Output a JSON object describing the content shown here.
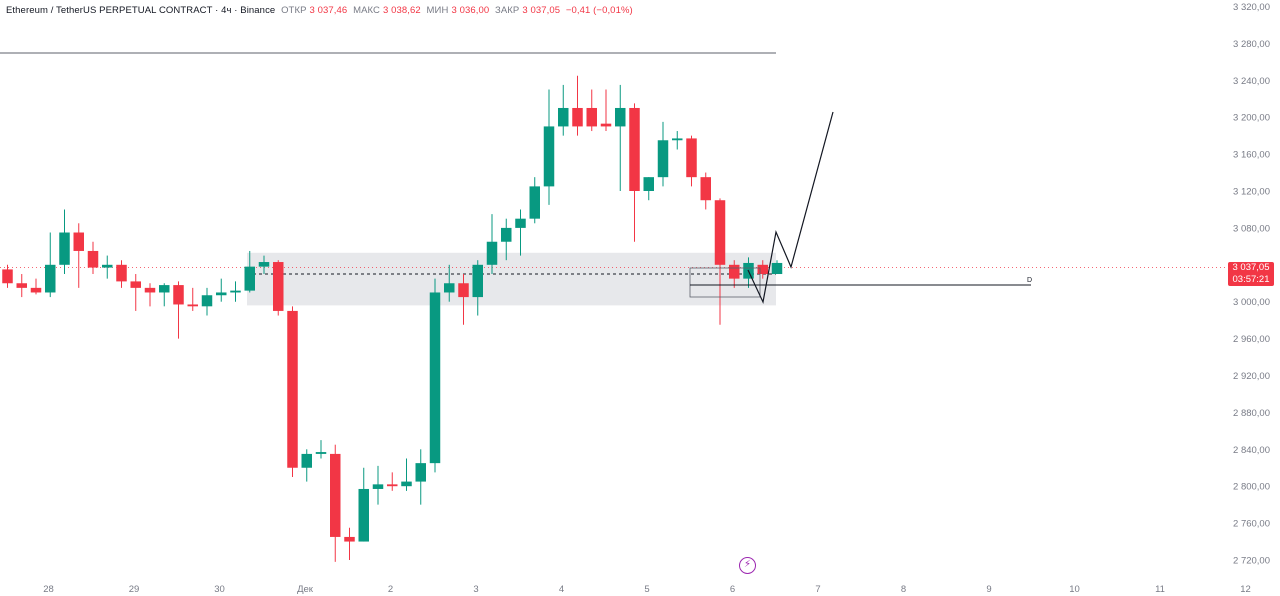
{
  "header": {
    "symbol": "Ethereum / TetherUS PERPETUAL CONTRACT · 4ч · Binance",
    "open_label": "ОТКР",
    "open_value": "3 037,46",
    "high_label": "МАКС",
    "high_value": "3 038,62",
    "low_label": "МИН",
    "low_value": "3 036,00",
    "close_label": "ЗАКР",
    "close_value": "3 037,05",
    "change": "−0,41 (−0,01%)"
  },
  "price_badge": {
    "price": "3 037,05",
    "countdown": "03:57:21"
  },
  "drawing_label": "D",
  "alert_icon": "lightning-icon",
  "colors": {
    "up": "#089981",
    "down": "#f23645",
    "zone": "#e3e4e8",
    "axis_text": "#787b86"
  },
  "chart_data": {
    "type": "candlestick",
    "y_axis": {
      "range": [
        2715,
        3325
      ],
      "ticks": [
        2720,
        2760,
        2800,
        2840,
        2880,
        2920,
        2960,
        3000,
        3040,
        3080,
        3120,
        3160,
        3200,
        3240,
        3280,
        3320
      ],
      "tick_labels": [
        "2 720,00",
        "2 760,00",
        "2 800,00",
        "2 840,00",
        "2 880,00",
        "2 920,00",
        "2 960,00",
        "3 000,00",
        "3 040,00",
        "3 080,00",
        "3 120,00",
        "3 160,00",
        "3 200,00",
        "3 240,00",
        "3 280,00",
        "3 320,00"
      ]
    },
    "x_axis": {
      "labels": [
        "28",
        "29",
        "30",
        "Дек",
        "2",
        "3",
        "4",
        "5",
        "6",
        "7",
        "8",
        "9",
        "10",
        "11",
        "12"
      ],
      "label_candle_index": [
        2,
        8,
        14,
        20,
        26,
        32,
        38,
        44,
        50,
        56,
        62,
        68,
        74,
        80,
        86
      ]
    },
    "candles": [
      {
        "o": 3035,
        "h": 3040,
        "l": 3015,
        "c": 3020
      },
      {
        "o": 3020,
        "h": 3030,
        "l": 3005,
        "c": 3015
      },
      {
        "o": 3015,
        "h": 3025,
        "l": 3008,
        "c": 3010
      },
      {
        "o": 3010,
        "h": 3075,
        "l": 3005,
        "c": 3040
      },
      {
        "o": 3040,
        "h": 3100,
        "l": 3030,
        "c": 3075
      },
      {
        "o": 3075,
        "h": 3085,
        "l": 3015,
        "c": 3055
      },
      {
        "o": 3055,
        "h": 3065,
        "l": 3030,
        "c": 3037
      },
      {
        "o": 3037,
        "h": 3050,
        "l": 3025,
        "c": 3040
      },
      {
        "o": 3040,
        "h": 3045,
        "l": 3015,
        "c": 3022
      },
      {
        "o": 3022,
        "h": 3030,
        "l": 2990,
        "c": 3015
      },
      {
        "o": 3015,
        "h": 3020,
        "l": 2995,
        "c": 3010
      },
      {
        "o": 3010,
        "h": 3020,
        "l": 2995,
        "c": 3018
      },
      {
        "o": 3018,
        "h": 3022,
        "l": 2960,
        "c": 2997
      },
      {
        "o": 2997,
        "h": 3015,
        "l": 2990,
        "c": 2995
      },
      {
        "o": 2995,
        "h": 3015,
        "l": 2985,
        "c": 3007
      },
      {
        "o": 3007,
        "h": 3025,
        "l": 3000,
        "c": 3010
      },
      {
        "o": 3010,
        "h": 3022,
        "l": 3000,
        "c": 3012
      },
      {
        "o": 3012,
        "h": 3055,
        "l": 3010,
        "c": 3038
      },
      {
        "o": 3038,
        "h": 3050,
        "l": 3030,
        "c": 3043
      },
      {
        "o": 3043,
        "h": 3045,
        "l": 2985,
        "c": 2990
      },
      {
        "o": 2990,
        "h": 2995,
        "l": 2810,
        "c": 2820
      },
      {
        "o": 2820,
        "h": 2840,
        "l": 2805,
        "c": 2835
      },
      {
        "o": 2835,
        "h": 2850,
        "l": 2830,
        "c": 2837
      },
      {
        "o": 2835,
        "h": 2845,
        "l": 2718,
        "c": 2745
      },
      {
        "o": 2745,
        "h": 2755,
        "l": 2720,
        "c": 2740
      },
      {
        "o": 2740,
        "h": 2820,
        "l": 2740,
        "c": 2797
      },
      {
        "o": 2797,
        "h": 2822,
        "l": 2780,
        "c": 2802
      },
      {
        "o": 2802,
        "h": 2815,
        "l": 2795,
        "c": 2800
      },
      {
        "o": 2800,
        "h": 2830,
        "l": 2795,
        "c": 2805
      },
      {
        "o": 2805,
        "h": 2840,
        "l": 2780,
        "c": 2825
      },
      {
        "o": 2825,
        "h": 3025,
        "l": 2815,
        "c": 3010
      },
      {
        "o": 3010,
        "h": 3040,
        "l": 3000,
        "c": 3020
      },
      {
        "o": 3020,
        "h": 3030,
        "l": 2975,
        "c": 3005
      },
      {
        "o": 3005,
        "h": 3045,
        "l": 2985,
        "c": 3040
      },
      {
        "o": 3040,
        "h": 3095,
        "l": 3030,
        "c": 3065
      },
      {
        "o": 3065,
        "h": 3090,
        "l": 3045,
        "c": 3080
      },
      {
        "o": 3080,
        "h": 3100,
        "l": 3050,
        "c": 3090
      },
      {
        "o": 3090,
        "h": 3135,
        "l": 3085,
        "c": 3125
      },
      {
        "o": 3125,
        "h": 3230,
        "l": 3105,
        "c": 3190
      },
      {
        "o": 3190,
        "h": 3235,
        "l": 3180,
        "c": 3210
      },
      {
        "o": 3210,
        "h": 3245,
        "l": 3180,
        "c": 3190
      },
      {
        "o": 3210,
        "h": 3230,
        "l": 3185,
        "c": 3190
      },
      {
        "o": 3193,
        "h": 3230,
        "l": 3185,
        "c": 3190
      },
      {
        "o": 3190,
        "h": 3235,
        "l": 3120,
        "c": 3210
      },
      {
        "o": 3210,
        "h": 3215,
        "l": 3065,
        "c": 3120
      },
      {
        "o": 3120,
        "h": 3135,
        "l": 3110,
        "c": 3135
      },
      {
        "o": 3135,
        "h": 3195,
        "l": 3125,
        "c": 3175
      },
      {
        "o": 3175,
        "h": 3185,
        "l": 3165,
        "c": 3177
      },
      {
        "o": 3177,
        "h": 3180,
        "l": 3125,
        "c": 3135
      },
      {
        "o": 3135,
        "h": 3140,
        "l": 3100,
        "c": 3110
      },
      {
        "o": 3110,
        "h": 3112,
        "l": 2975,
        "c": 3040
      },
      {
        "o": 3040,
        "h": 3045,
        "l": 3015,
        "c": 3025
      },
      {
        "o": 3025,
        "h": 3048,
        "l": 3015,
        "c": 3042
      },
      {
        "o": 3040,
        "h": 3045,
        "l": 3025,
        "c": 3030
      },
      {
        "o": 3030,
        "h": 3045,
        "l": 3030,
        "c": 3042
      }
    ]
  }
}
